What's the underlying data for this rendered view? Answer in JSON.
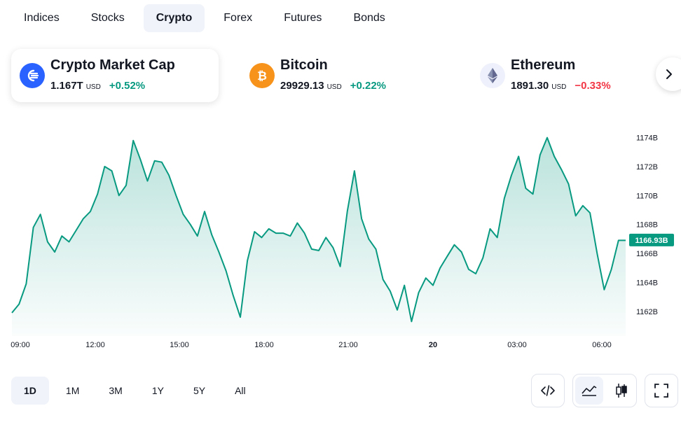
{
  "tabs": [
    {
      "label": "Indices",
      "active": false
    },
    {
      "label": "Stocks",
      "active": false
    },
    {
      "label": "Crypto",
      "active": true
    },
    {
      "label": "Forex",
      "active": false
    },
    {
      "label": "Futures",
      "active": false
    },
    {
      "label": "Bonds",
      "active": false
    }
  ],
  "tickers": [
    {
      "name": "Crypto Market Cap",
      "price": "1.167T",
      "currency": "USD",
      "change": "+0.52%",
      "direction": "up",
      "icon": "crypto-market-cap-icon",
      "color": "#2962ff"
    },
    {
      "name": "Bitcoin",
      "price": "29929.13",
      "currency": "USD",
      "change": "+0.22%",
      "direction": "up",
      "icon": "bitcoin-icon",
      "color": "#f7931a"
    },
    {
      "name": "Ethereum",
      "price": "1891.30",
      "currency": "USD",
      "change": "−0.33%",
      "direction": "down",
      "icon": "ethereum-icon",
      "color": "#627eea"
    }
  ],
  "chart_data": {
    "type": "area",
    "y_unit": "B",
    "y_ticks": [
      "1174B",
      "1172B",
      "1170B",
      "1168B",
      "1166B",
      "1164B",
      "1162B"
    ],
    "y_tick_values": [
      1174,
      1172,
      1170,
      1168,
      1166,
      1164,
      1162
    ],
    "ylim": [
      1160.3,
      1174.8
    ],
    "x_ticks": [
      "09:00",
      "12:00",
      "15:00",
      "18:00",
      "21:00",
      "20",
      "03:00",
      "06:00"
    ],
    "last_value_label": "1166.93B",
    "last_value": 1166.93,
    "line_color": "#089981",
    "series": [
      {
        "values": [
          1161.9,
          1162.5,
          1163.9,
          1167.8,
          1168.7,
          1166.8,
          1166.1,
          1167.2,
          1166.8,
          1167.6,
          1168.4,
          1168.9,
          1170.1,
          1172.0,
          1171.7,
          1170.0,
          1170.7,
          1173.8,
          1172.5,
          1171.0,
          1172.4,
          1172.3,
          1171.4,
          1170.0,
          1168.7,
          1168.0,
          1167.2,
          1168.9,
          1167.3,
          1166.1,
          1164.8,
          1163.1,
          1161.6,
          1165.5,
          1167.5,
          1167.1,
          1167.7,
          1167.4,
          1167.4,
          1167.2,
          1168.1,
          1167.4,
          1166.3,
          1166.2,
          1167.1,
          1166.4,
          1165.1,
          1168.9,
          1171.7,
          1168.4,
          1167.0,
          1166.3,
          1164.2,
          1163.4,
          1162.1,
          1163.8,
          1161.3,
          1163.3,
          1164.3,
          1163.8,
          1165.0,
          1165.8,
          1166.6,
          1166.1,
          1164.9,
          1164.6,
          1165.7,
          1167.7,
          1167.1,
          1169.8,
          1171.4,
          1172.7,
          1170.5,
          1170.1,
          1172.8,
          1174.0,
          1172.7,
          1171.8,
          1170.8,
          1168.6,
          1169.3,
          1168.8,
          1166.0,
          1163.5,
          1164.9,
          1166.9,
          1166.9
        ]
      }
    ]
  },
  "ranges": [
    {
      "label": "1D",
      "active": true
    },
    {
      "label": "1M",
      "active": false
    },
    {
      "label": "3M",
      "active": false
    },
    {
      "label": "1Y",
      "active": false
    },
    {
      "label": "5Y",
      "active": false
    },
    {
      "label": "All",
      "active": false
    }
  ],
  "tools": {
    "embed": "embed-code-icon",
    "area": "area-chart-icon",
    "candles": "candlestick-icon",
    "fullscreen": "fullscreen-icon"
  }
}
